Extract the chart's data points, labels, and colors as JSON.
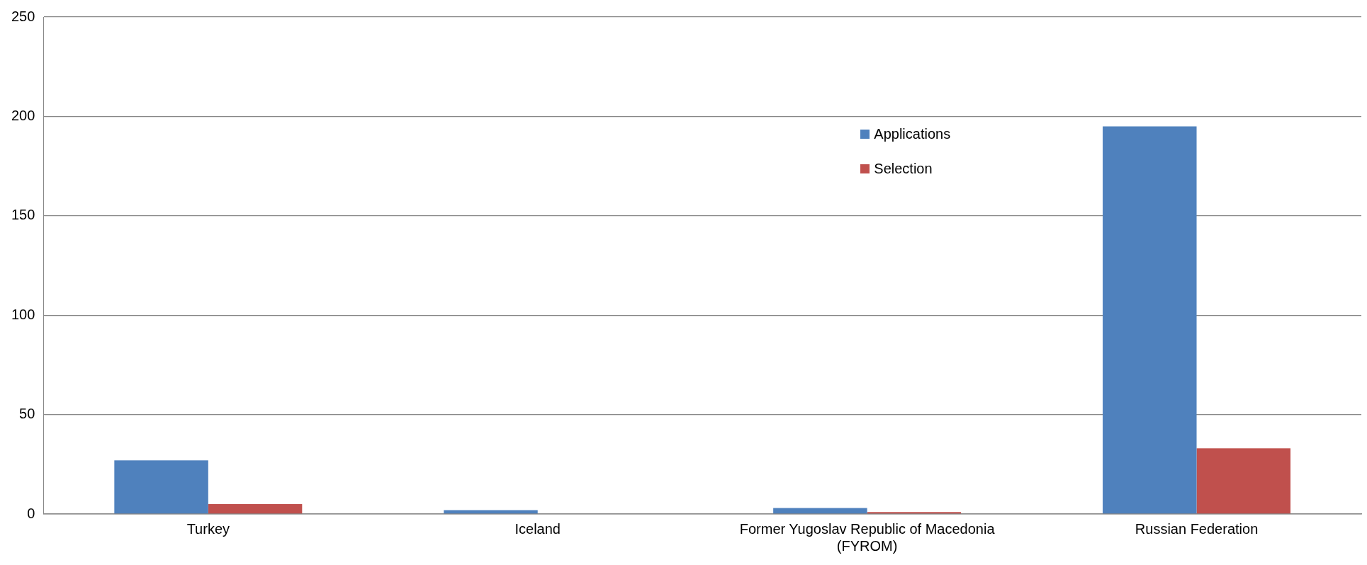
{
  "chart_data": {
    "type": "bar",
    "categories": [
      "Turkey",
      "Iceland",
      "Former Yugoslav Republic of Macedonia (FYROM)",
      "Russian Federation"
    ],
    "series": [
      {
        "name": "Applications",
        "color": "#4f81bd",
        "values": [
          27,
          2,
          3,
          195
        ]
      },
      {
        "name": "Selection",
        "color": "#c0504d",
        "values": [
          5,
          0,
          1,
          33
        ]
      }
    ],
    "ylim": [
      0,
      250
    ],
    "yticks": [
      0,
      50,
      100,
      150,
      200,
      250
    ],
    "grid": "y",
    "legend": "top right"
  }
}
